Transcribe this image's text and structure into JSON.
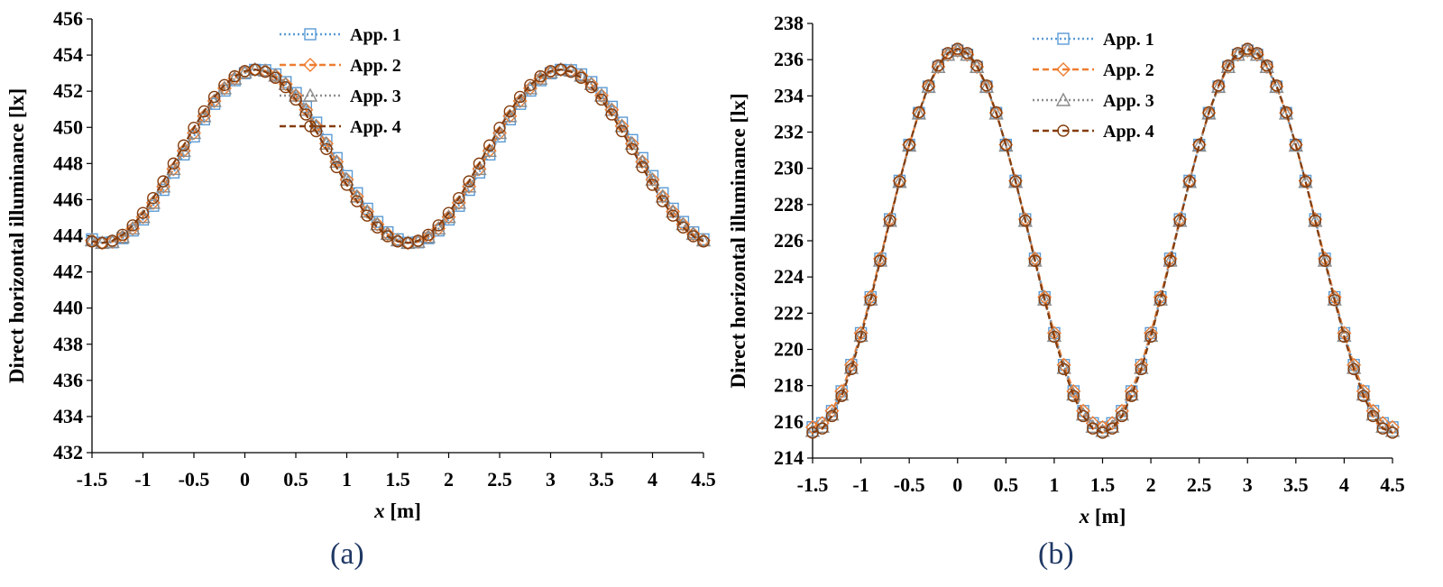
{
  "chart_data": [
    {
      "id": "a",
      "type": "line",
      "caption": "(a)",
      "xlabel_var": "x",
      "xlabel_unit": " [m]",
      "ylabel": "Direct horizontal illuminance [lx]",
      "xlim": [
        -1.5,
        4.5
      ],
      "ylim": [
        432,
        456
      ],
      "xticks": [
        "-1.5",
        "-1",
        "-0.5",
        "0",
        "0.5",
        "1",
        "1.5",
        "2",
        "2.5",
        "3",
        "3.5",
        "4",
        "4.5"
      ],
      "yticks": [
        "432",
        "434",
        "436",
        "438",
        "440",
        "442",
        "444",
        "446",
        "448",
        "450",
        "452",
        "454",
        "456"
      ],
      "legend_position": "top-center",
      "function": "y = c + a*cos(2*pi*(x - phase)/3)",
      "series": [
        {
          "name": "App. 1",
          "center": 448.4,
          "amplitude": 4.8,
          "phase": 0.14,
          "x_start": -1.5,
          "x_step": 0.1,
          "count": 61,
          "marker": "square",
          "dash": "dotted",
          "color": "#5b9bd5"
        },
        {
          "name": "App. 2",
          "center": 448.4,
          "amplitude": 4.8,
          "phase": 0.12,
          "x_start": -1.5,
          "x_step": 0.1,
          "count": 61,
          "marker": "diamond",
          "dash": "dashed",
          "color": "#ed7d31"
        },
        {
          "name": "App. 3",
          "center": 448.4,
          "amplitude": 4.8,
          "phase": 0.12,
          "x_start": -1.5,
          "x_step": 0.1,
          "count": 61,
          "marker": "triangle",
          "dash": "dotted",
          "color": "#8c8c8c"
        },
        {
          "name": "App. 4",
          "center": 448.4,
          "amplitude": 4.8,
          "phase": 0.09,
          "x_start": -1.5,
          "x_step": 0.1,
          "count": 61,
          "marker": "circle",
          "dash": "dashed",
          "color": "#843c0c"
        }
      ]
    },
    {
      "id": "b",
      "type": "line",
      "caption": "(b)",
      "xlabel_var": "x",
      "xlabel_unit": " [m]",
      "ylabel": "Direct horizontal illuminance [lx]",
      "xlim": [
        -1.5,
        4.5
      ],
      "ylim": [
        214,
        238
      ],
      "xticks": [
        "-1.5",
        "-1",
        "-0.5",
        "0",
        "0.5",
        "1",
        "1.5",
        "2",
        "2.5",
        "3",
        "3.5",
        "4",
        "4.5"
      ],
      "yticks": [
        "214",
        "216",
        "218",
        "220",
        "222",
        "224",
        "226",
        "228",
        "230",
        "232",
        "234",
        "236",
        "238"
      ],
      "legend_position": "top-center",
      "function": "y = c + a*cos(2*pi*(x - phase)/3)",
      "series": [
        {
          "name": "App. 1",
          "center": 226.1,
          "amplitude": 10.4,
          "phase": 0.0,
          "x_start": -1.5,
          "x_step": 0.1,
          "count": 61,
          "marker": "square",
          "dash": "dotted",
          "color": "#5b9bd5"
        },
        {
          "name": "App. 2",
          "center": 226.1,
          "amplitude": 10.4,
          "phase": 0.0,
          "x_start": -1.5,
          "x_step": 0.1,
          "count": 61,
          "marker": "diamond",
          "dash": "dashed",
          "color": "#ed7d31"
        },
        {
          "name": "App. 3",
          "center": 226.0,
          "amplitude": 10.5,
          "phase": 0.0,
          "x_start": -1.5,
          "x_step": 0.1,
          "count": 61,
          "marker": "triangle",
          "dash": "dotted",
          "color": "#8c8c8c"
        },
        {
          "name": "App. 4",
          "center": 226.0,
          "amplitude": 10.6,
          "phase": 0.0,
          "x_start": -1.5,
          "x_step": 0.1,
          "count": 61,
          "marker": "circle",
          "dash": "dashed",
          "color": "#843c0c"
        }
      ]
    }
  ]
}
